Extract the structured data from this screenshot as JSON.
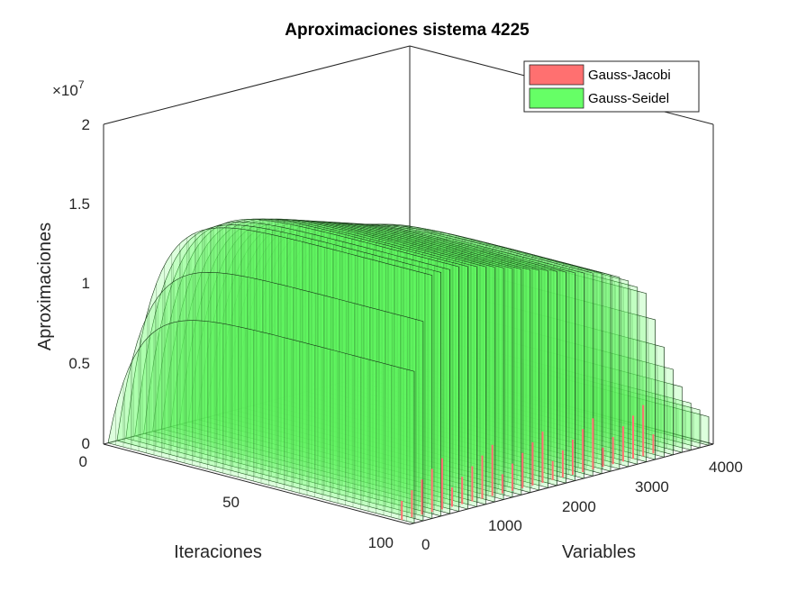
{
  "chart_data": {
    "type": "bar3",
    "title": "Aproximaciones sistema 4225",
    "xlabel": "Variables",
    "ylabel": "Iteraciones",
    "zlabel": "Aproximaciones",
    "z_exponent_label": "×10",
    "z_exponent_sup": "7",
    "x_ticks": [
      "0",
      "1000",
      "2000",
      "3000",
      "4000"
    ],
    "y_ticks": [
      "0",
      "50",
      "100"
    ],
    "z_ticks": [
      "0",
      "0.5",
      "1",
      "1.5",
      "2"
    ],
    "xlim": [
      0,
      4225
    ],
    "ylim": [
      0,
      100
    ],
    "zlim": [
      0,
      20000000
    ],
    "legend_position": "top-right",
    "series": [
      {
        "name": "Gauss-Jacobi",
        "color": "#ff7070",
        "edge": "#000000"
      },
      {
        "name": "Gauss-Seidel",
        "color": "#66ff66",
        "edge": "#000000"
      }
    ],
    "seidel_profile": {
      "variables": [
        0,
        300,
        700,
        1100,
        1500,
        1900,
        2300,
        2700,
        3000,
        3300,
        3600,
        3900,
        4225
      ],
      "plateau_values": [
        8000000,
        15200000,
        15300000,
        14800000,
        14200000,
        13600000,
        13000000,
        12500000,
        11800000,
        10500000,
        6000000,
        3000000,
        1500000
      ]
    }
  }
}
